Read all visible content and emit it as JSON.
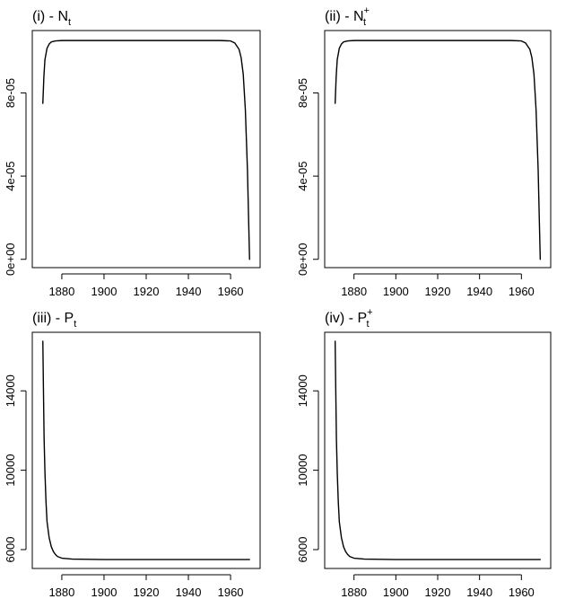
{
  "chart_data": [
    {
      "type": "line",
      "title": {
        "prefix": "(i) - ",
        "main": "N",
        "sub": "t",
        "sup": ""
      },
      "xlabel": "",
      "ylabel": "",
      "xlim": [
        1866,
        1974
      ],
      "ylim": [
        -4e-06,
        0.00011
      ],
      "xticks": [
        1880,
        1900,
        1920,
        1940,
        1960
      ],
      "yticks": [
        {
          "value": 0,
          "label": "0e+00"
        },
        {
          "value": 4e-05,
          "label": "4e-05"
        },
        {
          "value": 8e-05,
          "label": "8e-05"
        }
      ],
      "series": [
        {
          "x": [
            1871,
            1871.5,
            1872,
            1873,
            1874,
            1875,
            1877,
            1880,
            1890,
            1900,
            1920,
            1940,
            1955,
            1960,
            1962,
            1964,
            1965,
            1966,
            1967,
            1968,
            1969
          ],
          "y": [
            7.5e-05,
            8.8e-05,
            9.6e-05,
            0.0001015,
            0.0001035,
            0.0001045,
            0.000105,
            0.0001052,
            0.0001052,
            0.0001052,
            0.0001052,
            0.0001052,
            0.0001052,
            0.000105,
            0.000104,
            0.000101,
            9.7e-05,
            8.9e-05,
            7.2e-05,
            4.3e-05,
            0.0
          ]
        }
      ]
    },
    {
      "type": "line",
      "title": {
        "prefix": "(ii) - ",
        "main": "N",
        "sub": "t",
        "sup": "+"
      },
      "xlabel": "",
      "ylabel": "",
      "xlim": [
        1866,
        1974
      ],
      "ylim": [
        -4e-06,
        0.00011
      ],
      "xticks": [
        1880,
        1900,
        1920,
        1940,
        1960
      ],
      "yticks": [
        {
          "value": 0,
          "label": "0e+00"
        },
        {
          "value": 4e-05,
          "label": "4e-05"
        },
        {
          "value": 8e-05,
          "label": "8e-05"
        }
      ],
      "series": [
        {
          "x": [
            1871,
            1871.5,
            1872,
            1873,
            1874,
            1875,
            1877,
            1880,
            1890,
            1900,
            1920,
            1940,
            1955,
            1960,
            1962,
            1964,
            1965,
            1966,
            1967,
            1968,
            1969
          ],
          "y": [
            7.5e-05,
            8.8e-05,
            9.6e-05,
            0.0001015,
            0.0001035,
            0.0001045,
            0.000105,
            0.0001052,
            0.0001052,
            0.0001052,
            0.0001052,
            0.0001052,
            0.0001052,
            0.000105,
            0.000104,
            0.000101,
            9.7e-05,
            8.9e-05,
            7.2e-05,
            4.3e-05,
            0.0
          ]
        }
      ]
    },
    {
      "type": "line",
      "title": {
        "prefix": "(iii) - ",
        "main": "P",
        "sub": "t",
        "sup": ""
      },
      "xlabel": "",
      "ylabel": "",
      "xlim": [
        1866,
        1974
      ],
      "ylim": [
        5050,
        16950
      ],
      "xticks": [
        1880,
        1900,
        1920,
        1940,
        1960
      ],
      "yticks": [
        {
          "value": 6000,
          "label": "6000"
        },
        {
          "value": 10000,
          "label": "10000"
        },
        {
          "value": 14000,
          "label": "14000"
        }
      ],
      "series": [
        {
          "x": [
            1871,
            1871.3,
            1871.6,
            1872,
            1872.5,
            1873,
            1874,
            1875,
            1876,
            1877,
            1878,
            1880,
            1885,
            1900,
            1940,
            1969
          ],
          "y": [
            16500,
            14000,
            11600,
            9900,
            8400,
            7400,
            6600,
            6150,
            5900,
            5750,
            5650,
            5570,
            5520,
            5500,
            5500,
            5500
          ]
        }
      ]
    },
    {
      "type": "line",
      "title": {
        "prefix": "(iv) - ",
        "main": "P",
        "sub": "t",
        "sup": "+"
      },
      "xlabel": "",
      "ylabel": "",
      "xlim": [
        1866,
        1974
      ],
      "ylim": [
        5050,
        16950
      ],
      "xticks": [
        1880,
        1900,
        1920,
        1940,
        1960
      ],
      "yticks": [
        {
          "value": 6000,
          "label": "6000"
        },
        {
          "value": 10000,
          "label": "10000"
        },
        {
          "value": 14000,
          "label": "14000"
        }
      ],
      "series": [
        {
          "x": [
            1871,
            1871.3,
            1871.6,
            1872,
            1872.5,
            1873,
            1874,
            1875,
            1876,
            1877,
            1878,
            1880,
            1885,
            1900,
            1940,
            1969
          ],
          "y": [
            16500,
            14000,
            11600,
            9900,
            8400,
            7400,
            6600,
            6150,
            5900,
            5750,
            5650,
            5570,
            5520,
            5500,
            5500,
            5500
          ]
        }
      ]
    }
  ]
}
